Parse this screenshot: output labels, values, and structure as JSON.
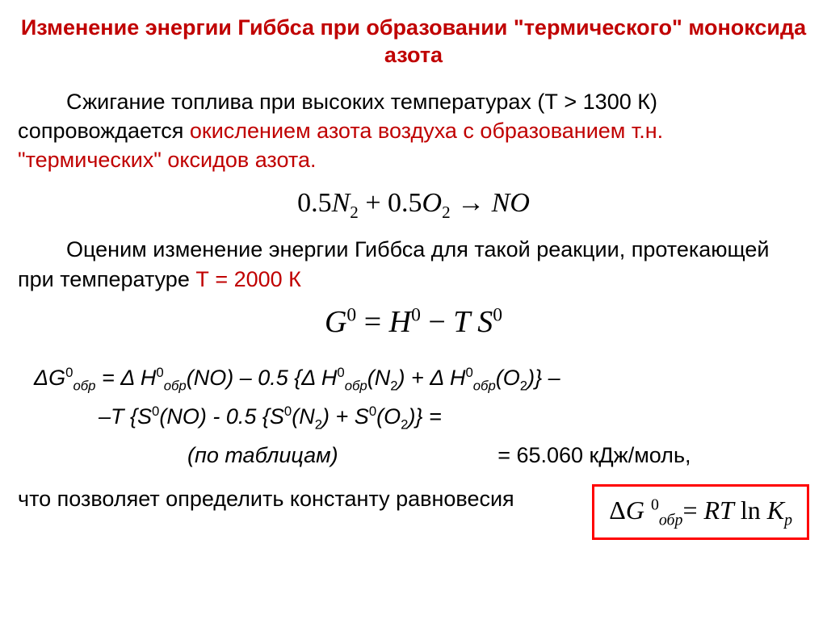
{
  "colors": {
    "title": "#c00000",
    "body_red": "#c00000",
    "body_black": "#000000",
    "box_border": "#ff0000"
  },
  "title": "Изменение энергии Гиббса при образовании \"термического\" моноксида азота",
  "p1": {
    "a": "Сжигание топлива при высоких температурах (Т > 1300 К) сопровождается ",
    "b": "окислением азота воздуха с образованием т.н. \"термических\" оксидов азота.",
    "a_color": "#000000",
    "b_color": "#c00000"
  },
  "eq1": {
    "c1": "0.5",
    "n2": "N",
    "plus": " + ",
    "c2": "0.5",
    "o2": "O",
    "arrow": " → ",
    "no": "NO"
  },
  "p2": {
    "a": "Оценим изменение энергии Гиббса для такой реакции, протекающей при температуре ",
    "b": "Т = 2000 К",
    "a_color": "#000000",
    "b_color": "#c00000"
  },
  "eq2_parts": {
    "G": "G",
    "eq": " = ",
    "H": "H",
    "minus": " − ",
    "T": "T",
    "S": " S"
  },
  "deriv": {
    "line1": "ΔG⁰обр = Δ H⁰обр(NO) – 0.5 {Δ H⁰обр(N₂) + Δ H⁰обр(O₂)} –",
    "line2": "–T {S⁰(NO) - 0.5 {S⁰(N₂) + S⁰(O₂)} =",
    "line3a": "(по таблицам)",
    "line3b": "= 65.060 кДж/моль,"
  },
  "bottom": {
    "text": "что позволяет определить константу равновесия",
    "box_dG": "ΔG",
    "box_sub": "обр",
    "box_eq": "= ",
    "box_RT": "RT",
    "box_ln": " ln ",
    "box_K": "K",
    "box_p": "p"
  }
}
